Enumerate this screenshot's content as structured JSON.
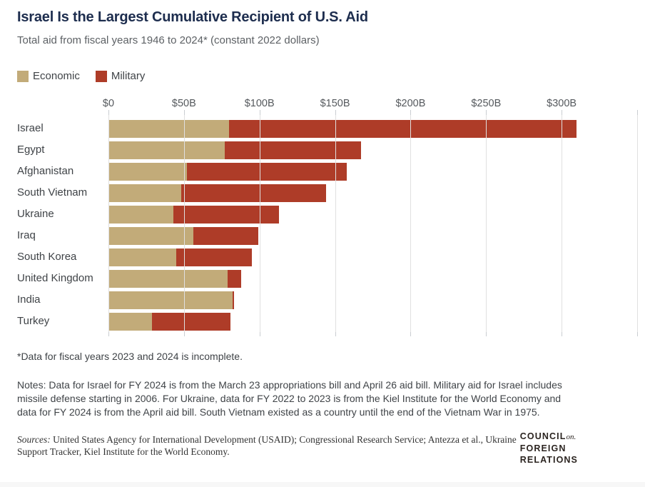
{
  "header": {
    "title": "Israel Is the Largest Cumulative Recipient of U.S. Aid",
    "subtitle": "Total aid from fiscal years 1946 to 2024* (constant 2022 dollars)"
  },
  "legend": [
    {
      "label": "Economic",
      "color": "#c2ab79"
    },
    {
      "label": "Military",
      "color": "#ae3c28"
    }
  ],
  "chart_data": {
    "type": "bar",
    "orientation": "horizontal",
    "stacked": true,
    "title": "Israel Is the Largest Cumulative Recipient of U.S. Aid",
    "subtitle": "Total aid from fiscal years 1946 to 2024* (constant 2022 dollars)",
    "units": "billions of constant 2022 U.S. dollars",
    "categories": [
      "Israel",
      "Egypt",
      "Afghanistan",
      "South Vietnam",
      "Ukraine",
      "Iraq",
      "South Korea",
      "United Kingdom",
      "India",
      "Turkey"
    ],
    "series": [
      {
        "name": "Economic",
        "color": "#c2ab79",
        "values": [
          80,
          77,
          52,
          48,
          43,
          56,
          45,
          79,
          82,
          29
        ]
      },
      {
        "name": "Military",
        "color": "#ae3c28",
        "values": [
          230,
          90,
          106,
          96,
          70,
          43,
          50,
          9,
          1,
          52
        ]
      }
    ],
    "totals": [
      310,
      167,
      158,
      144,
      113,
      99,
      95,
      88,
      83,
      81
    ],
    "xlim": [
      0,
      350
    ],
    "x_ticks": [
      {
        "value": 0,
        "label": "$0"
      },
      {
        "value": 50,
        "label": "$50B"
      },
      {
        "value": 100,
        "label": "$100B"
      },
      {
        "value": 150,
        "label": "$150B"
      },
      {
        "value": 200,
        "label": "$200B"
      },
      {
        "value": 250,
        "label": "$250B"
      },
      {
        "value": 300,
        "label": "$300B"
      },
      {
        "value": 350,
        "label": ""
      }
    ],
    "grid": true,
    "legend_position": "top-left"
  },
  "footnote": "*Data for fiscal years 2023 and 2024 is incomplete.",
  "notes": "Notes: Data for Israel for FY 2024 is from the March 23 appropriations bill and April 26 aid bill. Military aid for Israel includes missile defense starting in 2006. For Ukraine, data for FY 2022 to 2023 is from the Kiel Institute for the World Economy and data for FY 2024 is from the April aid bill. South Vietnam existed as a country until the end of the Vietnam War in 1975.",
  "sources": {
    "label": "Sources:",
    "text": "United States Agency for International Development (USAID); Congressional Research Service; Antezza et al., Ukraine Support Tracker, Kiel Institute for the World Economy."
  },
  "logo": {
    "line1": "COUNCIL",
    "line1_suffix": "on.",
    "line2": "FOREIGN",
    "line3": "RELATIONS"
  }
}
